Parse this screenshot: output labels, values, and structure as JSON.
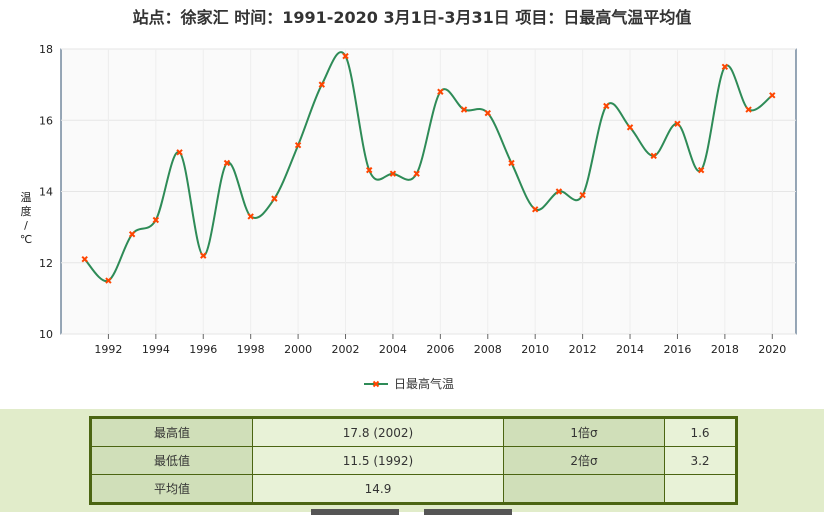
{
  "title": "站点：徐家汇 时间：1991-2020  3月1日-3月31日 项目：日最高气温平均值",
  "chart_data": {
    "type": "line",
    "title": "站点：徐家汇 时间：1991-2020  3月1日-3月31日 项目：日最高气温平均值",
    "xlabel": "",
    "ylabel": "温度/℃",
    "ylim": [
      10,
      18
    ],
    "xlim": [
      1990,
      2021
    ],
    "x_ticks": [
      1992,
      1994,
      1996,
      1998,
      2000,
      2002,
      2004,
      2006,
      2008,
      2010,
      2012,
      2014,
      2016,
      2018,
      2020
    ],
    "y_ticks": [
      10,
      12,
      14,
      16,
      18
    ],
    "legend_position": "bottom",
    "grid": true,
    "series": [
      {
        "name": "日最高气温",
        "color": "#2e8b57",
        "marker_color": "#ff4500",
        "x": [
          1991,
          1992,
          1993,
          1994,
          1995,
          1996,
          1997,
          1998,
          1999,
          2000,
          2001,
          2002,
          2003,
          2004,
          2005,
          2006,
          2007,
          2008,
          2009,
          2010,
          2011,
          2012,
          2013,
          2014,
          2015,
          2016,
          2017,
          2018,
          2019,
          2020
        ],
        "values": [
          12.1,
          11.5,
          12.8,
          13.2,
          15.1,
          12.2,
          14.8,
          13.3,
          13.8,
          15.3,
          17.0,
          17.8,
          14.6,
          14.5,
          14.5,
          16.8,
          16.3,
          16.2,
          14.8,
          13.5,
          14.0,
          13.9,
          16.4,
          15.8,
          15.0,
          15.9,
          14.6,
          17.5,
          16.3,
          16.7
        ]
      }
    ]
  },
  "stats": {
    "rows": [
      [
        "最高值",
        "17.8 (2002)",
        "1倍σ",
        "1.6"
      ],
      [
        "最低值",
        "11.5 (1992)",
        "2倍σ",
        "3.2"
      ],
      [
        "平均值",
        "14.9",
        "",
        ""
      ]
    ]
  }
}
